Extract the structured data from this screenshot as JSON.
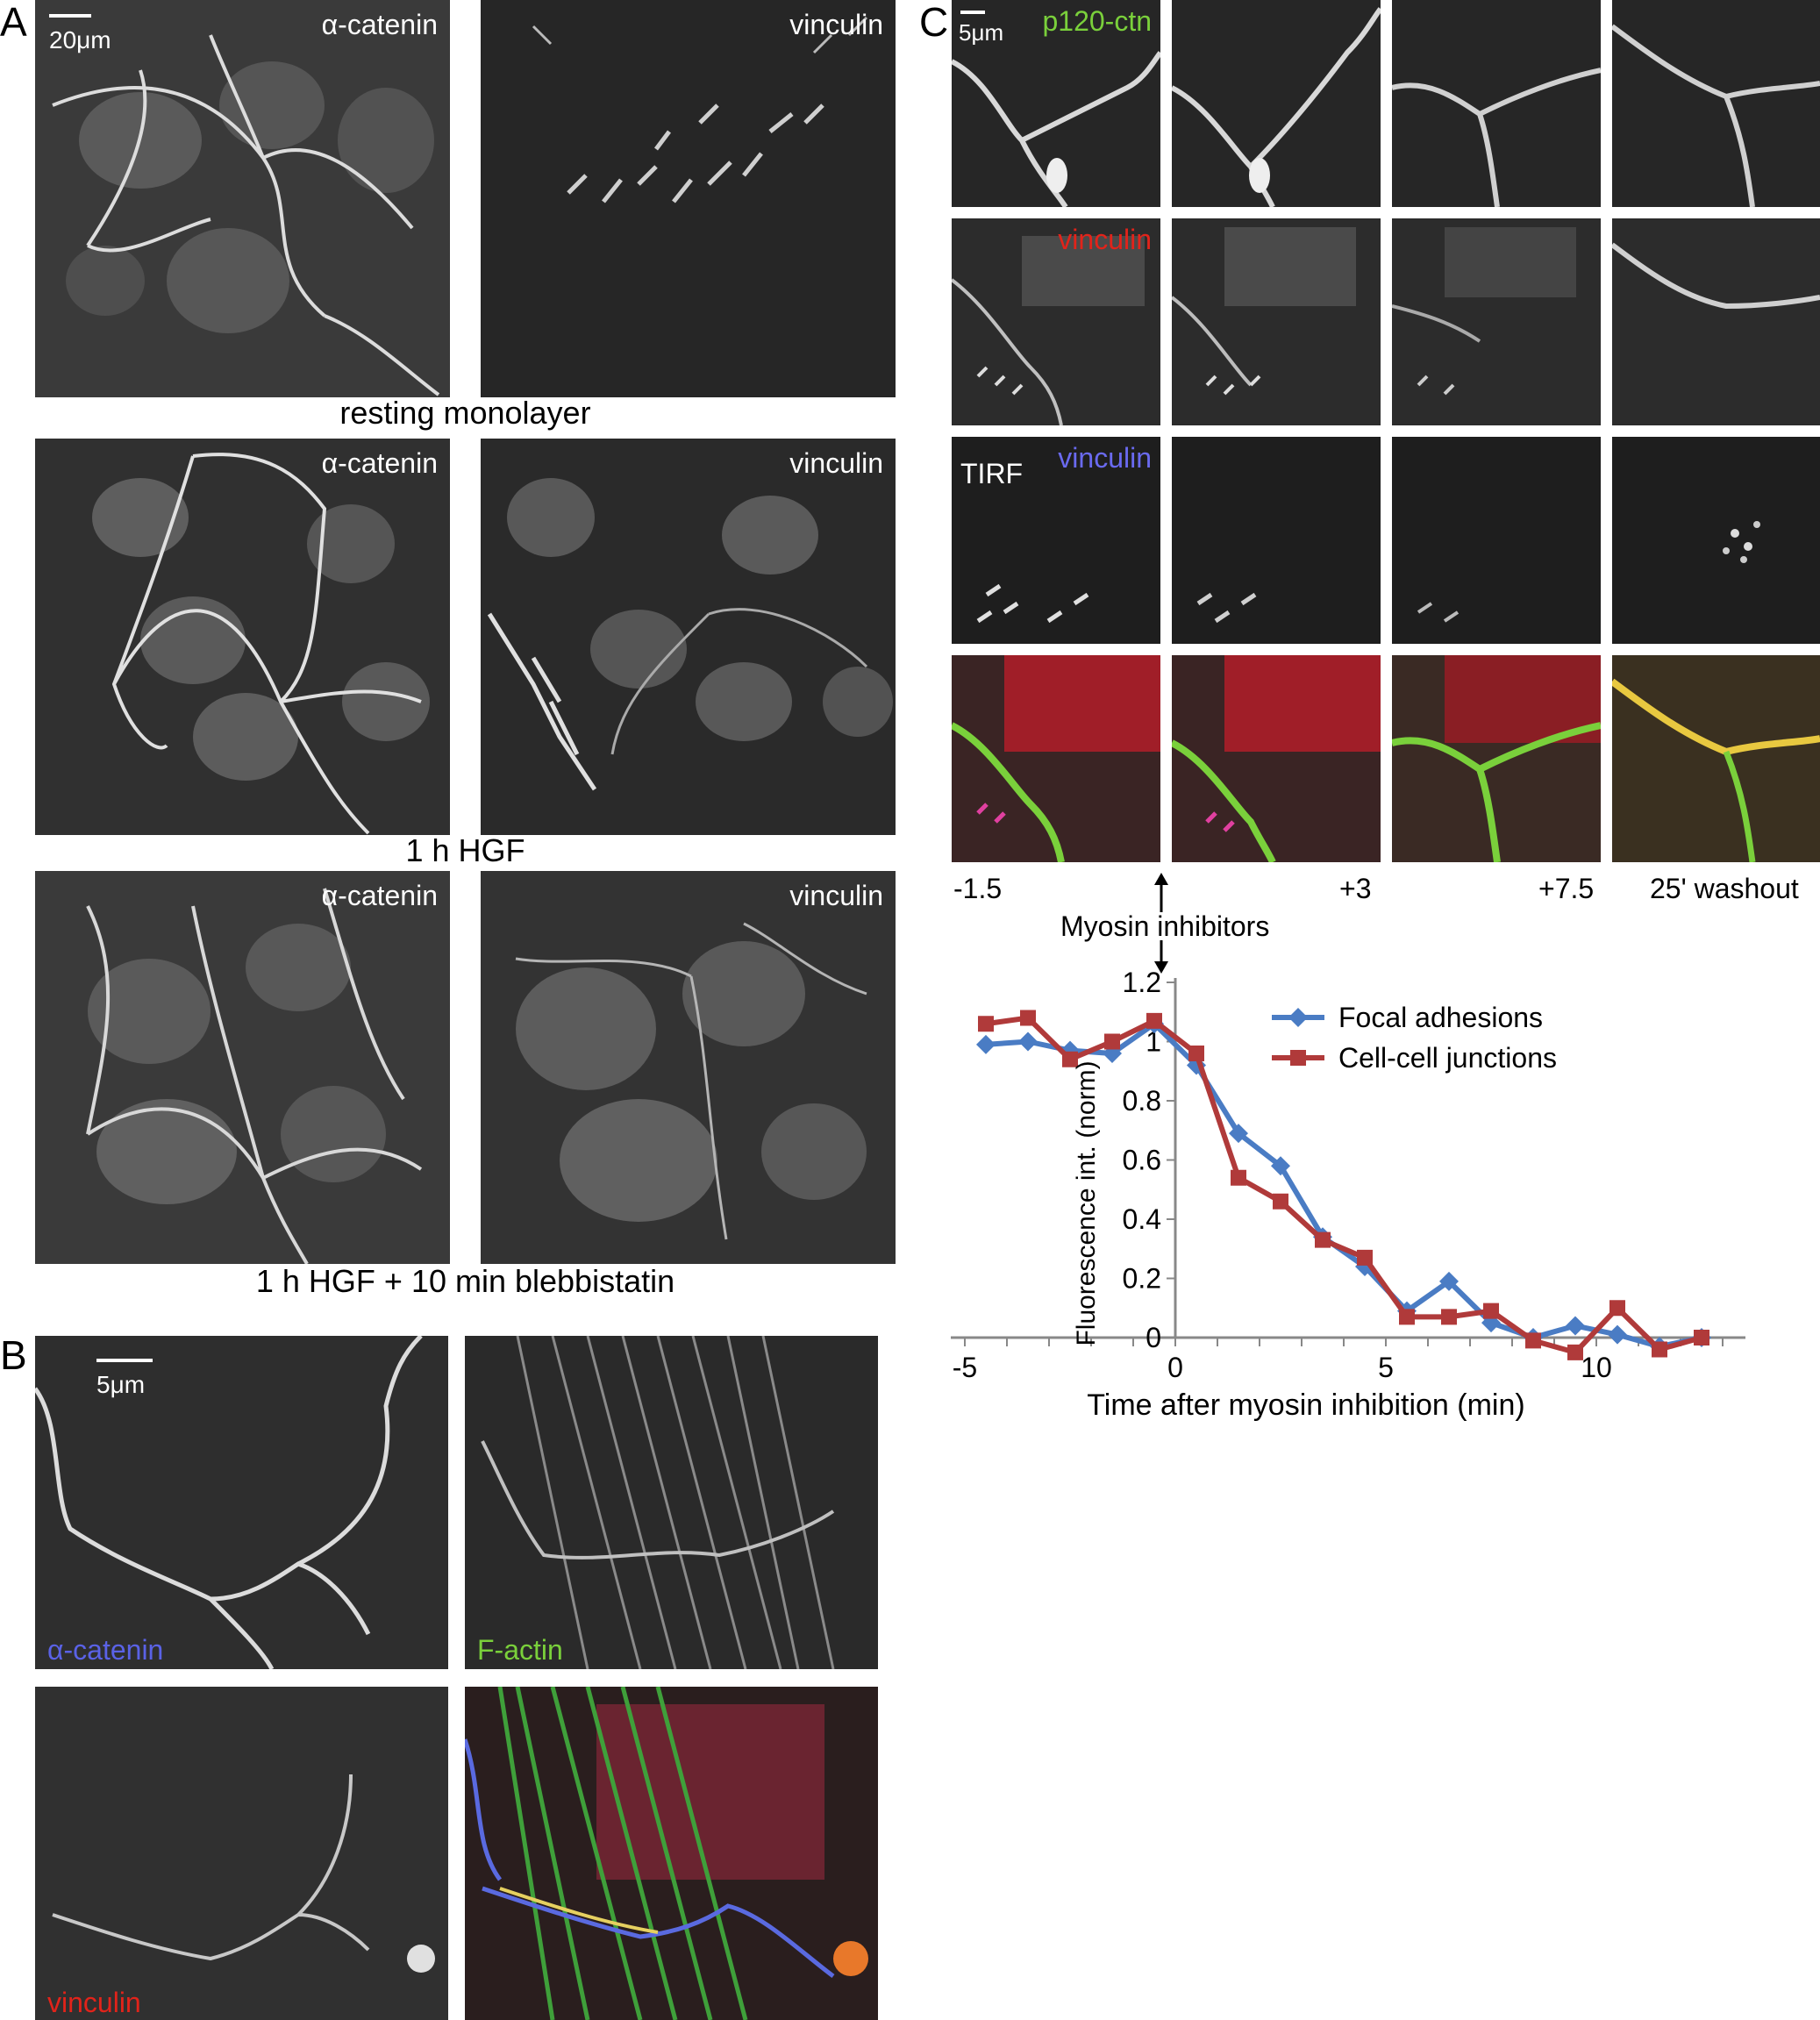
{
  "panel_a": {
    "letter": "A",
    "scale": "20μm",
    "rows": [
      {
        "caption": "resting monolayer",
        "left_label": "α-catenin",
        "right_label": "vinculin"
      },
      {
        "caption": "1 h  HGF",
        "left_label": "α-catenin",
        "right_label": "vinculin"
      },
      {
        "caption": "1 h  HGF + 10 min blebbistatin",
        "left_label": "α-catenin",
        "right_label": "vinculin"
      }
    ]
  },
  "panel_b": {
    "letter": "B",
    "scale": "5μm",
    "labels": {
      "alpha": "α-catenin",
      "factin": "F-actin",
      "vinculin": "vinculin"
    },
    "colors": {
      "alpha": "#5a62e6",
      "factin": "#7ad03b",
      "vinculin": "#e2231a"
    }
  },
  "panel_c": {
    "letter": "C",
    "scale": "5μm",
    "row_labels": {
      "p120": "p120-ctn",
      "vinculin_red": "vinculin",
      "tirf": "TIRF",
      "vinculin_blue": "vinculin"
    },
    "label_colors": {
      "p120": "#7ad03b",
      "vinculin_red": "#e2231a",
      "vinculin_blue": "#6a6af0"
    },
    "time_labels": [
      "-1.5",
      "+3",
      "+7.5",
      "25' washout"
    ],
    "arrow_label": "Myosin inhibitors"
  },
  "chart_data": {
    "type": "line",
    "xlabel": "Time after myosin inhibition (min)",
    "ylabel": "Fluorescence int. (norm)",
    "xlim": [
      -5,
      13
    ],
    "ylim": [
      0,
      1.2
    ],
    "xticks": [
      -5,
      0,
      5,
      10
    ],
    "yticks": [
      0,
      0.2,
      0.4,
      0.6,
      0.8,
      1,
      1.2
    ],
    "grid": false,
    "legend": "top-right",
    "series": [
      {
        "name": "Focal adhesions",
        "color": "#4a7cc4",
        "marker": "diamond",
        "x": [
          -4.5,
          -3.5,
          -2.5,
          -1.5,
          -0.5,
          0.5,
          1.5,
          2.5,
          3.5,
          4.5,
          5.5,
          6.5,
          7.5,
          8.5,
          9.5,
          10.5,
          11.5,
          12.5
        ],
        "y": [
          0.99,
          1.0,
          0.97,
          0.96,
          1.06,
          0.92,
          0.69,
          0.58,
          0.34,
          0.24,
          0.09,
          0.19,
          0.05,
          0.0,
          0.04,
          0.01,
          -0.03,
          0.0
        ]
      },
      {
        "name": "Cell-cell junctions",
        "color": "#b03a3a",
        "marker": "square",
        "x": [
          -4.5,
          -3.5,
          -2.5,
          -1.5,
          -0.5,
          0.5,
          1.5,
          2.5,
          3.5,
          4.5,
          5.5,
          6.5,
          7.5,
          8.5,
          9.5,
          10.5,
          11.5,
          12.5
        ],
        "y": [
          1.06,
          1.08,
          0.94,
          1.0,
          1.07,
          0.96,
          0.54,
          0.46,
          0.33,
          0.27,
          0.07,
          0.07,
          0.09,
          -0.01,
          -0.05,
          0.1,
          -0.04,
          0.0
        ]
      }
    ]
  }
}
